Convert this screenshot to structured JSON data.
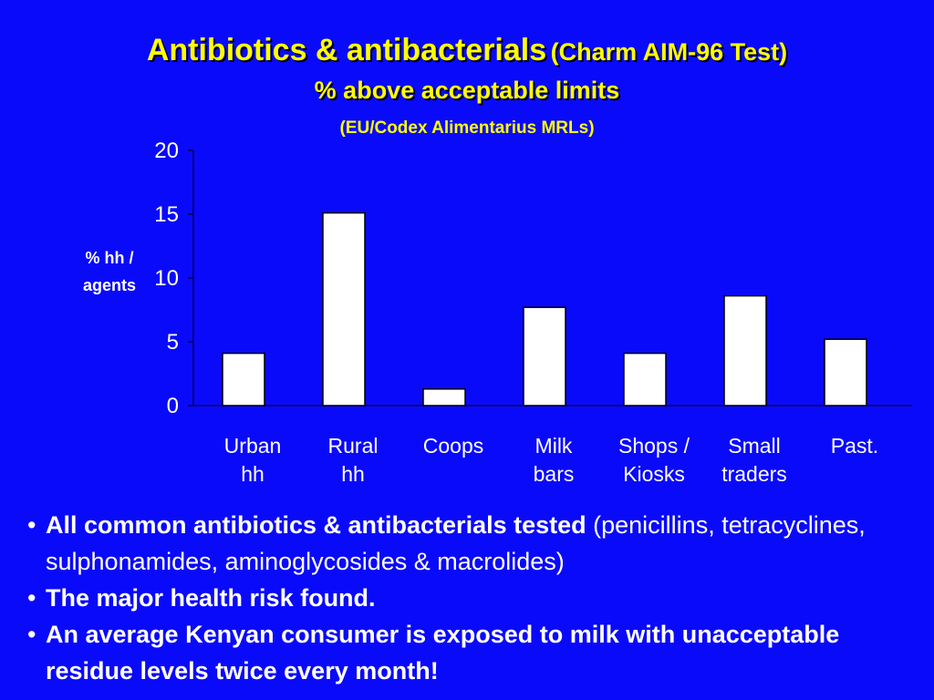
{
  "title": {
    "main": "Antibiotics & antibacterials",
    "paren": "(Charm AIM-96 Test)",
    "line2": "% above acceptable limits",
    "line3": "(EU/Codex Alimentarius MRLs)"
  },
  "chart_data": {
    "type": "bar",
    "categories": [
      [
        "Urban",
        "hh"
      ],
      [
        "Rural",
        "hh"
      ],
      [
        "Coops"
      ],
      [
        "Milk",
        "bars"
      ],
      [
        "Shops /",
        "Kiosks"
      ],
      [
        "Small",
        "traders"
      ],
      [
        "Past."
      ]
    ],
    "values": [
      4.1,
      15.1,
      1.3,
      7.7,
      4.1,
      8.6,
      5.2
    ],
    "ylabel": "% hh / agents",
    "ylabel_lines": [
      "% hh /",
      "agents"
    ],
    "ylim": [
      0,
      20
    ],
    "yticks": [
      0,
      5,
      10,
      15,
      20
    ],
    "grid": false,
    "bar_color": "#ffffff",
    "axis_color": "#000000",
    "label_color": "#ffffff"
  },
  "bullets": [
    {
      "bold": "All common antibiotics & antibacterials tested",
      "normal": " (penicillins, tetracyclines, sulphonamides, aminoglycosides & macrolides)"
    },
    {
      "bold": "The major health risk found.",
      "normal": ""
    },
    {
      "bold": "An average Kenyan consumer is exposed to milk with unacceptable residue levels twice every month!",
      "normal": ""
    }
  ],
  "colors": {
    "background": "#0a0afa",
    "title": "#ffff00",
    "text": "#ffffff"
  }
}
